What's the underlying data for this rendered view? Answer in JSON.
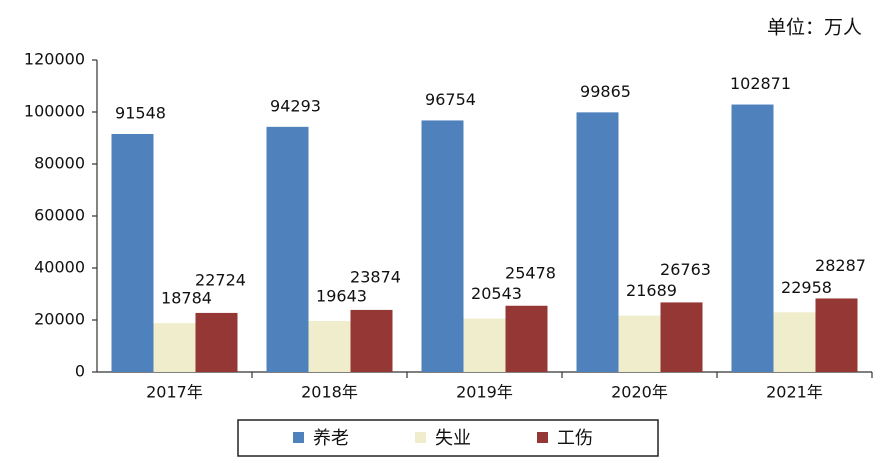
{
  "chart_data": {
    "type": "bar",
    "unit_label": "单位：万人",
    "categories": [
      "2017年",
      "2018年",
      "2019年",
      "2020年",
      "2021年"
    ],
    "series": [
      {
        "name": "养老",
        "color": "#4f81bd",
        "values": [
          91548,
          94293,
          96754,
          99865,
          102871
        ]
      },
      {
        "name": "失业",
        "color": "#efedcb",
        "values": [
          18784,
          19643,
          20543,
          21689,
          22958
        ]
      },
      {
        "name": "工伤",
        "color": "#953735",
        "values": [
          22724,
          23874,
          25478,
          26763,
          28287
        ]
      }
    ],
    "ylim": [
      0,
      120000
    ],
    "yticks": [
      0,
      20000,
      40000,
      60000,
      80000,
      100000,
      120000
    ],
    "grid": false
  }
}
